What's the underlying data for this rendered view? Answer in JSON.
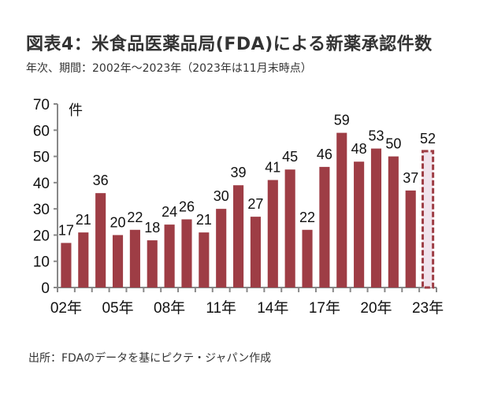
{
  "header": {
    "title": "図表4：米食品医薬品局(FDA)による新薬承認件数",
    "subtitle": "年次、期間：2002年～2023年（2023年は11月末時点）"
  },
  "footer": {
    "source": "出所：FDAのデータを基にピクテ・ジャパン作成"
  },
  "colors": {
    "bar": "#9e3d45",
    "partial_bar_fill": "#f1e3ec",
    "axis": "#888888"
  },
  "chart_data": {
    "type": "bar",
    "title": "図表4：米食品医薬品局(FDA)による新薬承認件数",
    "subtitle": "年次、期間：2002年～2023年（2023年は11月末時点）",
    "xlabel": "",
    "ylabel": "件",
    "ylim": [
      0,
      70
    ],
    "yticks": [
      0,
      10,
      20,
      30,
      40,
      50,
      60,
      70
    ],
    "grid": false,
    "legend": "none",
    "categories": [
      "2002",
      "2003",
      "2004",
      "2005",
      "2006",
      "2007",
      "2008",
      "2009",
      "2010",
      "2011",
      "2012",
      "2013",
      "2014",
      "2015",
      "2016",
      "2017",
      "2018",
      "2019",
      "2020",
      "2021",
      "2022",
      "2023"
    ],
    "xtick_labels": [
      "02年",
      "",
      "",
      "05年",
      "",
      "",
      "08年",
      "",
      "",
      "11年",
      "",
      "",
      "14年",
      "",
      "",
      "17年",
      "",
      "",
      "20年",
      "",
      "",
      "23年"
    ],
    "values": [
      17,
      21,
      36,
      20,
      22,
      18,
      24,
      26,
      21,
      30,
      39,
      27,
      41,
      45,
      22,
      46,
      59,
      48,
      53,
      50,
      37,
      52
    ],
    "annotations": [
      {
        "category": "2023",
        "note": "11月末時点（破線枠）"
      }
    ]
  }
}
